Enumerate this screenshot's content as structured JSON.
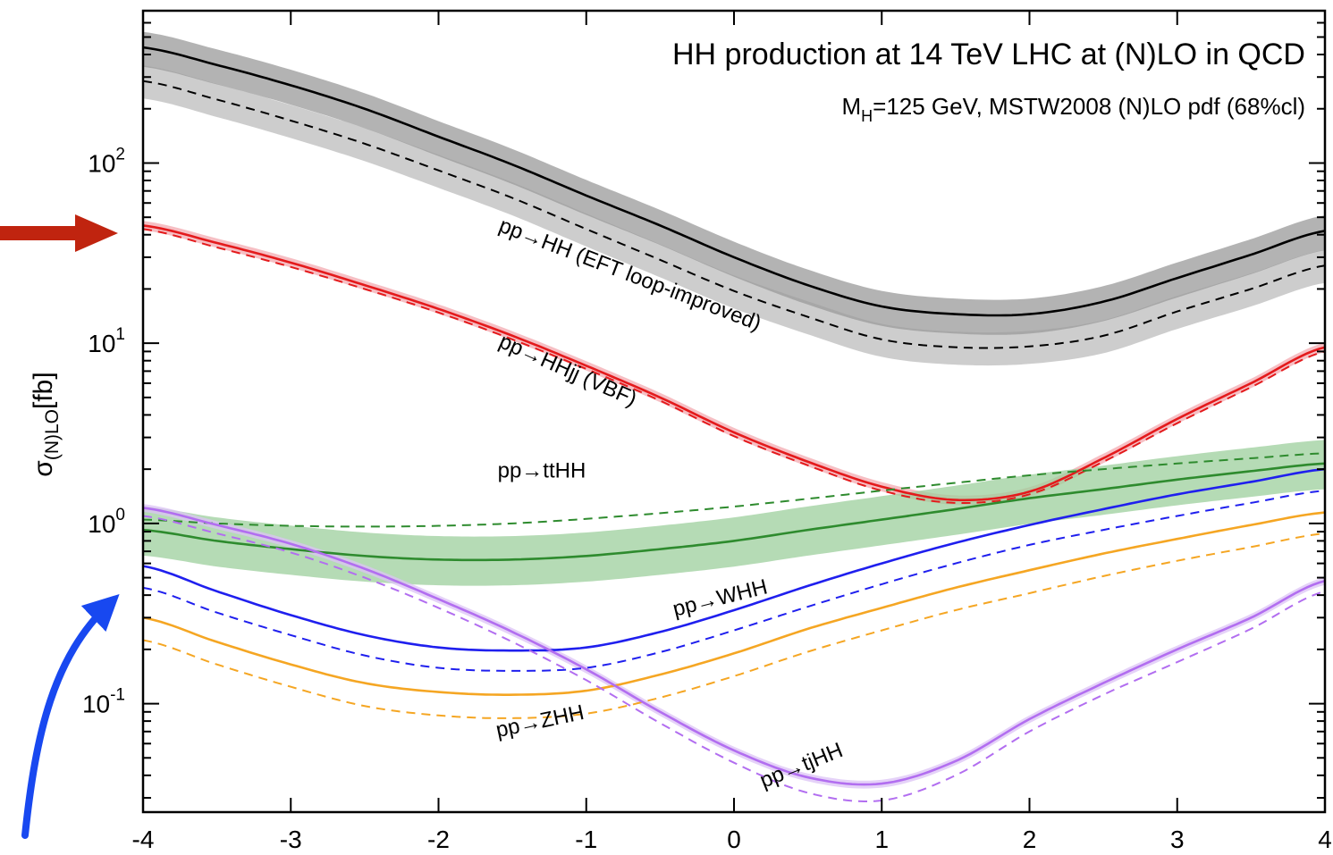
{
  "chart_data": {
    "type": "line",
    "title": "HH production at 14 TeV LHC at (N)LO in QCD",
    "subtitle": {
      "main": "M",
      "sub": "H",
      "rest": "=125 GeV, MSTW2008 (N)LO pdf (68%cl)"
    },
    "xlabel": "",
    "ylabel": {
      "main": "σ",
      "sub": "(N)LO",
      "rest": "[fb]"
    },
    "xlim": [
      -4,
      4
    ],
    "ylim": [
      0.025,
      700
    ],
    "log_y": true,
    "grid": false,
    "x_ticks": [
      "-4",
      "-3",
      "-2",
      "-1",
      "0",
      "1",
      "2",
      "3",
      "4"
    ],
    "y_ticks": [
      {
        "base": "10",
        "exp": "-1",
        "value": 0.1
      },
      {
        "base": "10",
        "exp": "0",
        "value": 1
      },
      {
        "base": "10",
        "exp": "1",
        "value": 10
      },
      {
        "base": "10",
        "exp": "2",
        "value": 100
      }
    ],
    "x": [
      -4,
      -3.5,
      -3,
      -2.5,
      -2,
      -1.5,
      -1,
      -0.5,
      0,
      0.5,
      1,
      1.5,
      2,
      2.5,
      3,
      3.5,
      4
    ],
    "series": [
      {
        "name": "pp→HH (EFT loop-improved)",
        "color": "#000000",
        "band": "#9a9a9a",
        "band2": "#c8c8c8",
        "nlo": [
          438,
          350,
          270,
          200,
          140,
          98,
          66,
          45,
          30,
          21,
          16,
          14.5,
          14.5,
          17,
          23,
          31,
          42
        ],
        "lo": [
          285,
          225,
          172,
          128,
          91,
          64,
          43,
          29,
          19.5,
          14,
          10.5,
          9.5,
          9.6,
          11,
          15,
          20,
          27
        ],
        "band_hi": 1.22,
        "band_lo": 0.78,
        "band2_lo": 0.8
      },
      {
        "name": "pp→HHjj (VBF)",
        "color": "#e41a1c",
        "band": "#f3aab0",
        "nlo": [
          45,
          36,
          28,
          21,
          15.5,
          11,
          7.5,
          5,
          3.2,
          2.2,
          1.6,
          1.35,
          1.5,
          2.3,
          3.8,
          6,
          9.5
        ],
        "lo": [
          43,
          34,
          26.5,
          20,
          14.8,
          10.5,
          7.2,
          4.8,
          3.05,
          2.1,
          1.52,
          1.3,
          1.45,
          2.2,
          3.6,
          5.7,
          9
        ],
        "band_hi": 1.06,
        "band_lo": 0.94
      },
      {
        "name": "pp→ttHH",
        "color": "#2e8b2e",
        "band": "#9ccf9c",
        "nlo": [
          0.92,
          0.8,
          0.72,
          0.66,
          0.63,
          0.63,
          0.66,
          0.72,
          0.8,
          0.92,
          1.05,
          1.2,
          1.38,
          1.55,
          1.75,
          1.95,
          2.15
        ],
        "lo": [
          1.05,
          1.0,
          0.97,
          0.96,
          0.97,
          1.0,
          1.06,
          1.14,
          1.24,
          1.37,
          1.52,
          1.68,
          1.85,
          2.0,
          2.15,
          2.3,
          2.45
        ],
        "band_hi": 1.35,
        "band_lo": 0.72
      },
      {
        "name": "pp→WHH",
        "color": "#1f1fee",
        "band": null,
        "nlo": [
          0.58,
          0.42,
          0.31,
          0.24,
          0.205,
          0.197,
          0.205,
          0.25,
          0.33,
          0.45,
          0.6,
          0.78,
          0.98,
          1.2,
          1.45,
          1.7,
          2.0
        ],
        "lo": [
          0.44,
          0.32,
          0.24,
          0.185,
          0.158,
          0.152,
          0.158,
          0.193,
          0.255,
          0.345,
          0.46,
          0.6,
          0.76,
          0.92,
          1.1,
          1.3,
          1.52
        ]
      },
      {
        "name": "pp→ZHH",
        "color": "#f5a623",
        "band": null,
        "nlo": [
          0.3,
          0.22,
          0.165,
          0.13,
          0.116,
          0.112,
          0.118,
          0.145,
          0.19,
          0.26,
          0.34,
          0.44,
          0.55,
          0.68,
          0.82,
          0.98,
          1.15
        ],
        "lo": [
          0.225,
          0.165,
          0.124,
          0.097,
          0.086,
          0.083,
          0.088,
          0.108,
          0.142,
          0.194,
          0.255,
          0.33,
          0.41,
          0.51,
          0.62,
          0.74,
          0.88
        ]
      },
      {
        "name": "pp→tjHH",
        "color": "#b26ef0",
        "band": "#dcc3f5",
        "nlo": [
          1.22,
          0.98,
          0.77,
          0.56,
          0.38,
          0.25,
          0.155,
          0.09,
          0.055,
          0.039,
          0.036,
          0.048,
          0.082,
          0.13,
          0.2,
          0.3,
          0.48
        ],
        "lo": [
          1.1,
          0.88,
          0.69,
          0.5,
          0.34,
          0.22,
          0.135,
          0.078,
          0.047,
          0.032,
          0.029,
          0.04,
          0.07,
          0.112,
          0.17,
          0.26,
          0.42
        ],
        "band_hi": 1.05,
        "band_lo": 0.95
      }
    ],
    "annotations": [
      {
        "text": "pp→HH (EFT loop-improved)",
        "x": -1.6,
        "y": 42,
        "rotate": 21
      },
      {
        "text": "pp→HHjj (VBF)",
        "x": -1.6,
        "y": 9.6,
        "rotate": 24
      },
      {
        "text": "pp→ttHH",
        "x": -1.6,
        "y": 1.8,
        "rotate": 0
      },
      {
        "text": "pp→WHH",
        "x": -0.4,
        "y": 0.305,
        "rotate": -14
      },
      {
        "text": "pp→ZHH",
        "x": -1.6,
        "y": 0.065,
        "rotate": -12
      },
      {
        "text": "pp→tjHH",
        "x": 0.2,
        "y": 0.034,
        "rotate": -22
      }
    ]
  },
  "overlay": {
    "red_arrow_color": "#c0240f",
    "blue_arrow_color": "#1848f0"
  }
}
